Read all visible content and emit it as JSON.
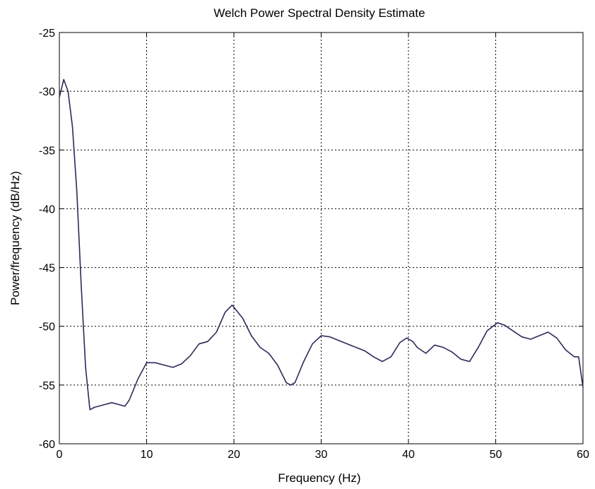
{
  "chart_data": {
    "type": "line",
    "title": "Welch Power Spectral Density Estimate",
    "xlabel": "Frequency (Hz)",
    "ylabel": "Power/frequency (dB/Hz)",
    "xlim": [
      0,
      60
    ],
    "ylim": [
      -60,
      -25
    ],
    "xticks": [
      0,
      10,
      20,
      30,
      40,
      50,
      60
    ],
    "yticks": [
      -60,
      -55,
      -50,
      -45,
      -40,
      -35,
      -30,
      -25
    ],
    "x_tick_labels": [
      "0",
      "10",
      "20",
      "30",
      "40",
      "50",
      "60"
    ],
    "y_tick_labels": [
      "-60",
      "-55",
      "-50",
      "-45",
      "-40",
      "-35",
      "-30",
      "-25"
    ],
    "grid": true,
    "line_color": "#2a2a5a",
    "series": [
      {
        "x": [
          0,
          0.5,
          1.0,
          1.5,
          2.0,
          2.5,
          3.0,
          3.5,
          4.0,
          5.0,
          6.0,
          7.0,
          7.5,
          8.0,
          9.0,
          10.0,
          11.0,
          12.0,
          13.0,
          14.0,
          15.0,
          16.0,
          17.0,
          18.0,
          19.0,
          19.8,
          21.0,
          22.0,
          23.0,
          24.0,
          25.0,
          26.0,
          26.5,
          27.0,
          28.0,
          29.0,
          30.0,
          31.0,
          32.0,
          33.0,
          34.0,
          35.0,
          36.0,
          37.0,
          38.0,
          39.0,
          39.8,
          40.5,
          41.0,
          42.0,
          43.0,
          44.0,
          45.0,
          46.0,
          47.0,
          48.0,
          49.0,
          50.2,
          51.0,
          52.0,
          53.0,
          54.0,
          55.0,
          56.0,
          57.0,
          58.0,
          59.0,
          59.5,
          60.0
        ],
        "y": [
          -30.5,
          -29.0,
          -30.0,
          -33.0,
          -38.5,
          -46.5,
          -53.5,
          -57.1,
          -56.9,
          -56.7,
          -56.5,
          -56.7,
          -56.8,
          -56.3,
          -54.5,
          -53.1,
          -53.1,
          -53.3,
          -53.5,
          -53.2,
          -52.5,
          -51.5,
          -51.3,
          -50.5,
          -48.8,
          -48.2,
          -49.3,
          -50.8,
          -51.8,
          -52.3,
          -53.3,
          -54.8,
          -55.0,
          -54.8,
          -53.0,
          -51.5,
          -50.8,
          -50.9,
          -51.2,
          -51.5,
          -51.8,
          -52.1,
          -52.6,
          -53.0,
          -52.6,
          -51.4,
          -51.0,
          -51.3,
          -51.8,
          -52.3,
          -51.6,
          -51.8,
          -52.2,
          -52.8,
          -53.0,
          -51.8,
          -50.4,
          -49.7,
          -49.9,
          -50.4,
          -50.9,
          -51.1,
          -50.8,
          -50.5,
          -51.0,
          -52.0,
          -52.6,
          -52.6,
          -55.2
        ]
      }
    ]
  }
}
